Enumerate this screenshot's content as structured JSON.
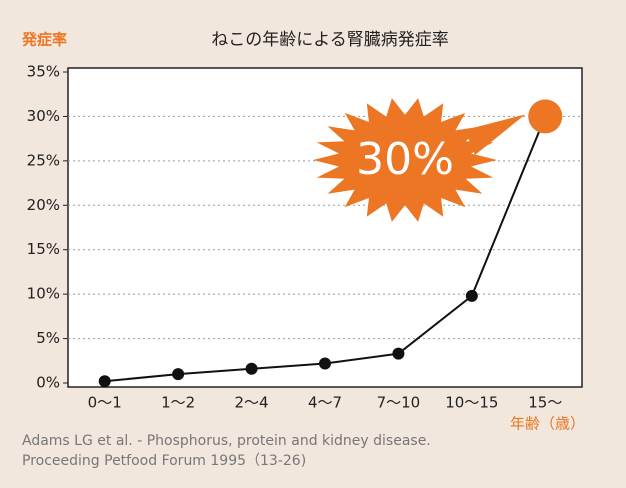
{
  "chart_data": {
    "type": "line",
    "title": "ねこの年齢による腎臓病発症率",
    "y_label": "発症率",
    "x_label": "年齢（歳）",
    "categories": [
      "0〜1",
      "1〜2",
      "2〜4",
      "4〜7",
      "7〜10",
      "10〜15",
      "15〜"
    ],
    "values": [
      0.2,
      1.0,
      1.6,
      2.2,
      3.3,
      9.8,
      30
    ],
    "value_labels": [
      null,
      null,
      null,
      null,
      null,
      null,
      "30%"
    ],
    "color": "#111111",
    "highlight_color": "#ec7623",
    "ylim": [
      0,
      35
    ],
    "yticks": [
      {
        "value": 0,
        "label": "0%"
      },
      {
        "value": 5,
        "label": "5%"
      },
      {
        "value": 10,
        "label": "10%"
      },
      {
        "value": 15,
        "label": "15%"
      },
      {
        "value": 20,
        "label": "20%"
      },
      {
        "value": 25,
        "label": "25%"
      },
      {
        "value": 30,
        "label": "30%"
      },
      {
        "value": 35,
        "label": "35%"
      }
    ],
    "grid": true,
    "source": [
      "Adams LG et al. - Phosphorus, protein and kidney disease.",
      "Proceeding Petfood Forum 1995（13-26)"
    ]
  }
}
